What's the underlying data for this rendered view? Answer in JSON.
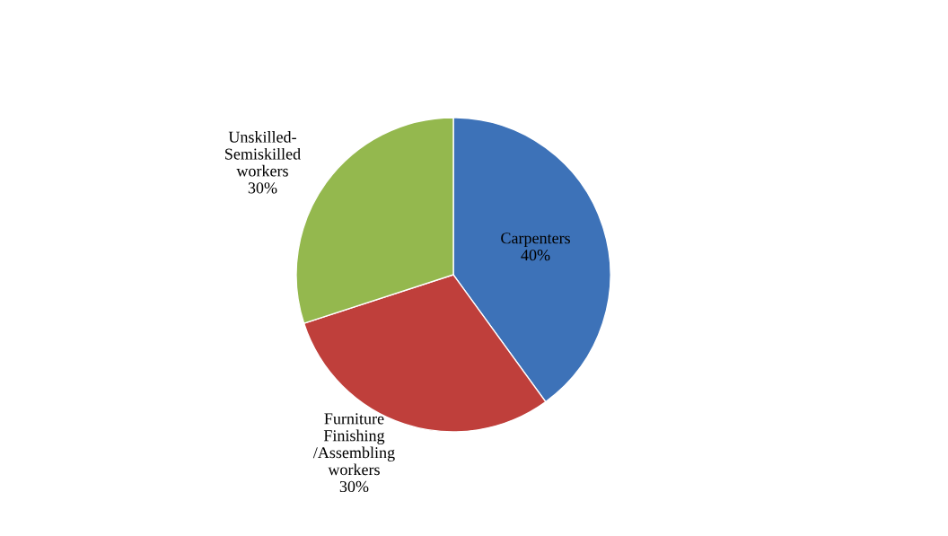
{
  "chart_data": {
    "type": "pie",
    "categories": [
      "Carpenters",
      "Furniture\nFinishing\n/Assembling\nworkers",
      "Unskilled-\nSemiskilled\nworkers"
    ],
    "values": [
      40,
      30,
      30
    ],
    "value_labels": [
      "40%",
      "30%",
      "30%"
    ],
    "colors": [
      "#3d72b8",
      "#bf3f3b",
      "#94b84e"
    ],
    "legend": false
  }
}
